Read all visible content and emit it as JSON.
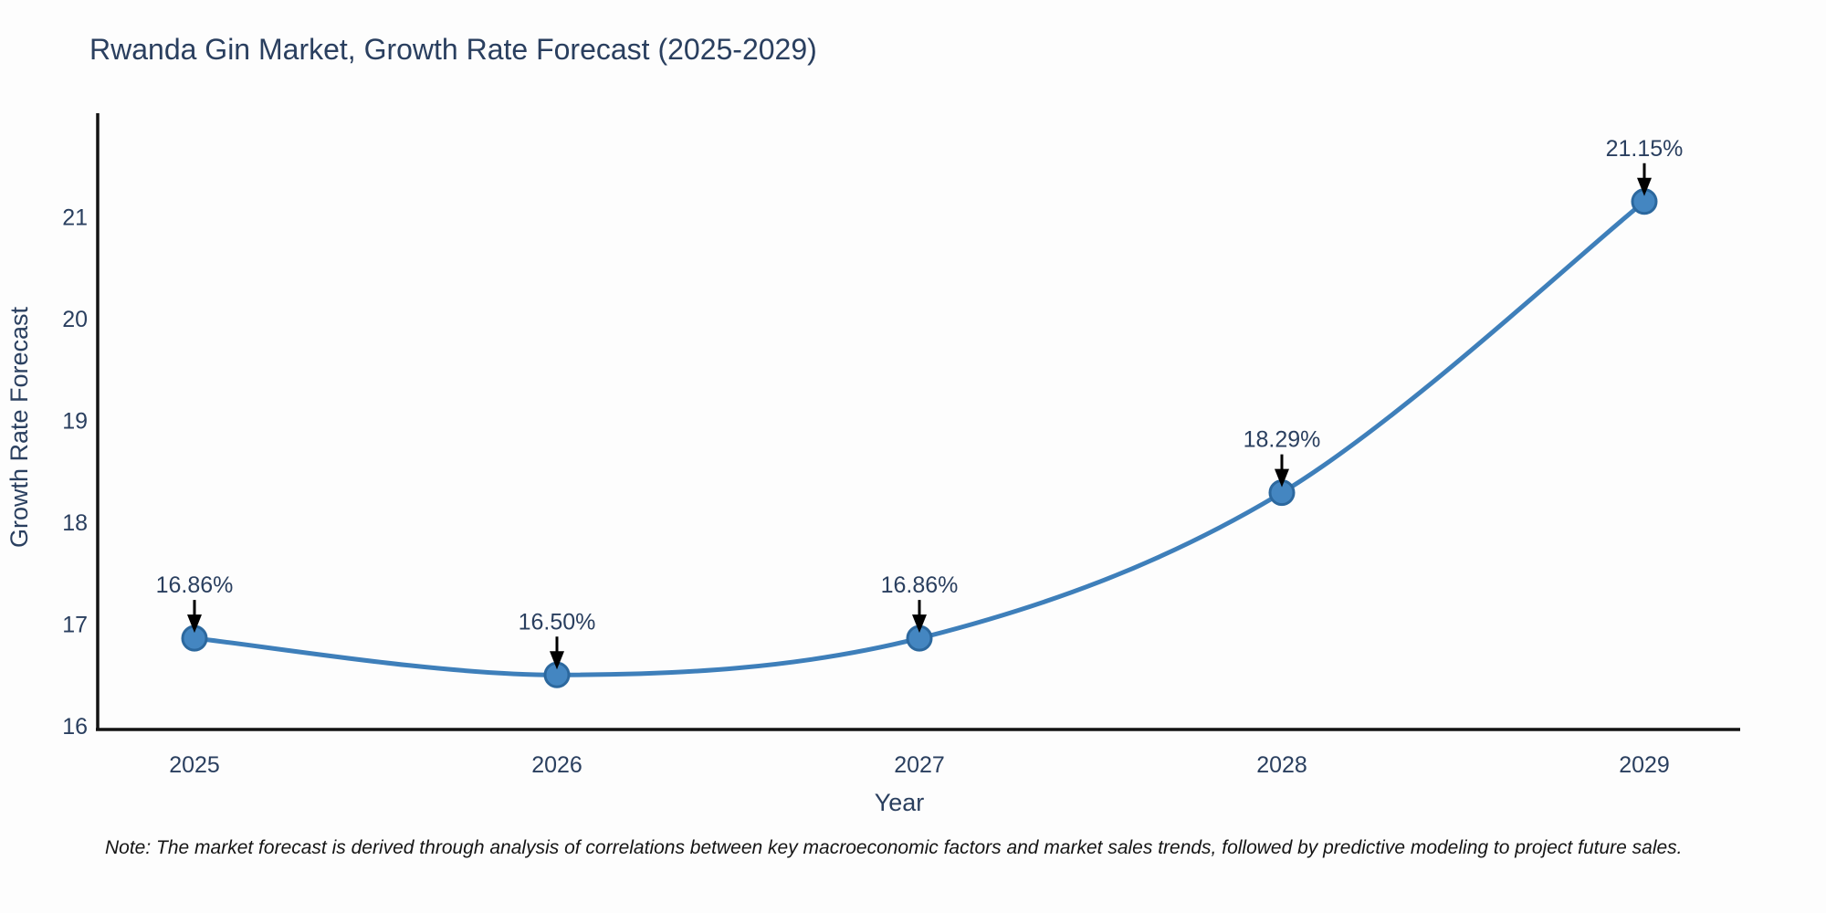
{
  "title": "Rwanda Gin Market, Growth Rate Forecast (2025-2029)",
  "note": "Note: The market forecast is derived through analysis of correlations between key macroeconomic factors and market sales trends, followed by predictive modeling to project future sales.",
  "colors": {
    "title_text": "#2a3f5f",
    "tick_text": "#2a3f5f",
    "axis_line": "#131313",
    "line": "#3e7fba",
    "marker_fill": "#4486c1",
    "marker_stroke": "#2c689e",
    "arrow": "#000000",
    "note_text": "#141414",
    "background": "#fdfdfd"
  },
  "chart_data": {
    "type": "line",
    "line_shape": "spline",
    "x": [
      2025,
      2026,
      2027,
      2028,
      2029
    ],
    "values": [
      16.86,
      16.5,
      16.86,
      18.29,
      21.15
    ],
    "point_labels": [
      "16.86%",
      "16.50%",
      "16.86%",
      "18.29%",
      "21.15%"
    ],
    "title": "Rwanda Gin Market, Growth Rate Forecast (2025-2029)",
    "xlabel": "Year",
    "ylabel": "Growth Rate Forecast",
    "xticks": [
      "2025",
      "2026",
      "2027",
      "2028",
      "2029"
    ],
    "yticks": [
      16,
      17,
      18,
      19,
      20,
      21
    ],
    "ylim": [
      16,
      22.05
    ],
    "grid": false,
    "legend": "none",
    "annotations": "arrow-down-to-point"
  }
}
